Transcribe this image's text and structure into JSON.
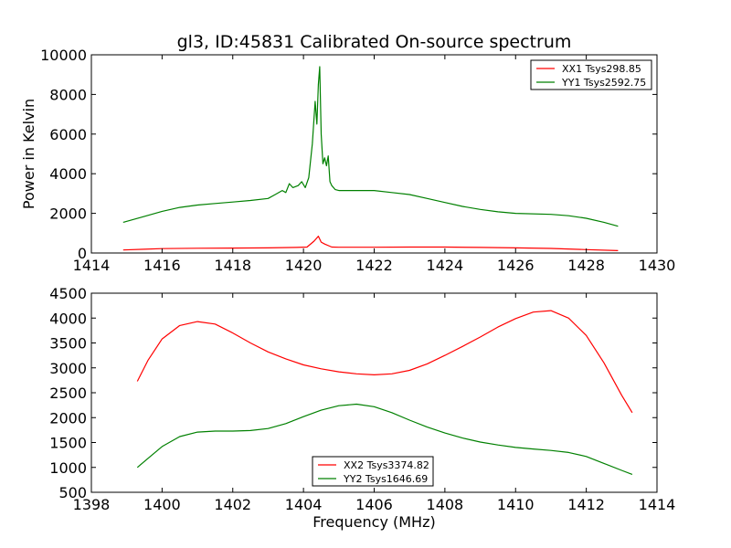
{
  "title": "gl3, ID:45831 Calibrated On-source spectrum",
  "chart_data": [
    {
      "type": "line",
      "title": "gl3, ID:45831 Calibrated On-source spectrum",
      "xlabel": "",
      "ylabel": "Power in Kelvin",
      "xlim": [
        1414,
        1430
      ],
      "ylim": [
        0,
        10000
      ],
      "xticks": [
        1414,
        1416,
        1418,
        1420,
        1422,
        1424,
        1426,
        1428,
        1430
      ],
      "yticks": [
        0,
        2000,
        4000,
        6000,
        8000,
        10000
      ],
      "legend_position": "upper right",
      "grid": false,
      "series": [
        {
          "name": "XX1 Tsys298.85",
          "color": "#ff0000",
          "x": [
            1414.9,
            1415.5,
            1416,
            1417,
            1418,
            1419,
            1419.8,
            1420.1,
            1420.3,
            1420.42,
            1420.5,
            1420.6,
            1420.8,
            1421,
            1422,
            1423,
            1424,
            1425,
            1426,
            1427,
            1428,
            1428.9
          ],
          "y": [
            150,
            190,
            220,
            240,
            250,
            260,
            280,
            300,
            600,
            850,
            550,
            450,
            300,
            290,
            290,
            300,
            300,
            280,
            260,
            230,
            170,
            120
          ]
        },
        {
          "name": "YY1 Tsys2592.75",
          "color": "#008000",
          "x": [
            1414.9,
            1415.5,
            1416,
            1416.5,
            1417,
            1417.5,
            1418,
            1418.5,
            1419,
            1419.2,
            1419.4,
            1419.5,
            1419.6,
            1419.7,
            1419.85,
            1419.95,
            1420.05,
            1420.15,
            1420.25,
            1420.33,
            1420.38,
            1420.42,
            1420.46,
            1420.5,
            1420.55,
            1420.6,
            1420.65,
            1420.7,
            1420.75,
            1420.8,
            1420.9,
            1421,
            1422,
            1422.5,
            1423,
            1423.5,
            1424,
            1424.5,
            1425,
            1425.5,
            1426,
            1427,
            1427.5,
            1428,
            1428.5,
            1428.9
          ],
          "y": [
            1550,
            1850,
            2100,
            2300,
            2420,
            2500,
            2570,
            2650,
            2750,
            2950,
            3150,
            3050,
            3500,
            3300,
            3400,
            3600,
            3300,
            3800,
            5500,
            7650,
            6500,
            8500,
            9400,
            6000,
            4500,
            4800,
            4400,
            4900,
            3600,
            3400,
            3200,
            3150,
            3150,
            3050,
            2950,
            2750,
            2550,
            2350,
            2200,
            2080,
            2000,
            1950,
            1880,
            1750,
            1550,
            1350
          ]
        }
      ]
    },
    {
      "type": "line",
      "title": "",
      "xlabel": "Frequency (MHz)",
      "ylabel": "",
      "xlim": [
        1398,
        1414
      ],
      "ylim": [
        500,
        4500
      ],
      "xticks": [
        1398,
        1400,
        1402,
        1404,
        1406,
        1408,
        1410,
        1412,
        1414
      ],
      "yticks": [
        500,
        1000,
        1500,
        2000,
        2500,
        3000,
        3500,
        4000,
        4500
      ],
      "legend_position": "lower center",
      "grid": false,
      "series": [
        {
          "name": "XX2 Tsys3374.82",
          "color": "#ff0000",
          "x": [
            1399.3,
            1399.6,
            1400,
            1400.5,
            1401,
            1401.5,
            1402,
            1402.5,
            1403,
            1403.5,
            1404,
            1404.5,
            1405,
            1405.5,
            1406,
            1406.5,
            1407,
            1407.5,
            1408,
            1408.5,
            1409,
            1409.5,
            1410,
            1410.5,
            1411,
            1411.5,
            1412,
            1412.5,
            1413,
            1413.3
          ],
          "y": [
            2730,
            3150,
            3580,
            3850,
            3930,
            3880,
            3700,
            3500,
            3320,
            3180,
            3060,
            2980,
            2920,
            2880,
            2860,
            2880,
            2950,
            3080,
            3250,
            3430,
            3620,
            3820,
            3990,
            4120,
            4150,
            4000,
            3650,
            3100,
            2450,
            2100
          ]
        },
        {
          "name": "YY2 Tsys1646.69",
          "color": "#008000",
          "x": [
            1399.3,
            1399.6,
            1400,
            1400.5,
            1401,
            1401.5,
            1402,
            1402.5,
            1403,
            1403.5,
            1404,
            1404.5,
            1405,
            1405.5,
            1406,
            1406.5,
            1407,
            1407.5,
            1408,
            1408.5,
            1409,
            1409.5,
            1410,
            1410.5,
            1411,
            1411.5,
            1412,
            1412.5,
            1413,
            1413.3
          ],
          "y": [
            1000,
            1180,
            1420,
            1620,
            1710,
            1730,
            1730,
            1740,
            1780,
            1880,
            2020,
            2150,
            2240,
            2270,
            2220,
            2100,
            1950,
            1810,
            1690,
            1590,
            1510,
            1450,
            1400,
            1370,
            1340,
            1300,
            1220,
            1080,
            940,
            860
          ]
        }
      ]
    }
  ]
}
